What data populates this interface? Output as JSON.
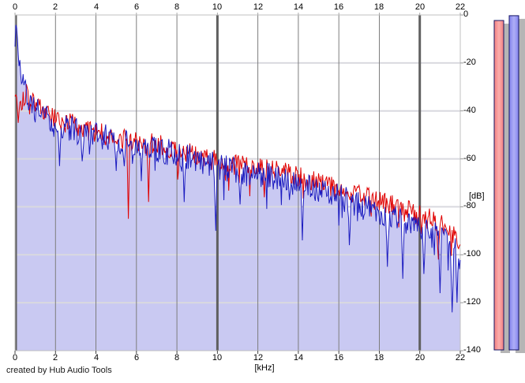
{
  "app": {
    "credit": "created by Hub Audio Tools"
  },
  "colors": {
    "background": "#ffffff",
    "plot_background": "#ffffff",
    "fill": "#c9c9f2",
    "trace_red": "#e00000",
    "trace_blue": "#1c1cc0",
    "grid_horizontal": "#d9d9df",
    "grid_vertical_minor": "#7d7d7d",
    "grid_vertical_major": "#606060",
    "plot_border": "#c0c0c0",
    "tick_bottom": "#444444",
    "tick_right": "#999999",
    "tick_top": "#aaaaaa",
    "meter_shadow": "#b5b5b5",
    "meter_border": "#141464"
  },
  "chart_data": {
    "type": "line",
    "title": "",
    "xlabel": "[kHz]",
    "ylabel": "[dB]",
    "xlim": [
      0,
      22
    ],
    "ylim": [
      -140,
      0
    ],
    "grid": true,
    "x_tick_labels": [
      "0",
      "2",
      "4",
      "6",
      "8",
      "10",
      "12",
      "14",
      "16",
      "18",
      "20",
      "22"
    ],
    "y_tick_labels": [
      "0",
      "-20",
      "-40",
      "-60",
      "-80",
      "-100",
      "-120",
      "-140"
    ],
    "major_vertical_gridlines_khz": [
      0,
      10,
      20
    ],
    "series": [
      {
        "name": "spectrum-red",
        "color": "#e00000",
        "noise_db": 4.5,
        "seed": 101,
        "anchors": [
          [
            0,
            -33
          ],
          [
            0.3,
            -36
          ],
          [
            0.55,
            -32
          ],
          [
            0.8,
            -34
          ],
          [
            1,
            -37
          ],
          [
            1.3,
            -39
          ],
          [
            1.7,
            -42
          ],
          [
            2,
            -44
          ],
          [
            2.5,
            -45
          ],
          [
            3,
            -46
          ],
          [
            3.5,
            -47.5
          ],
          [
            4,
            -49
          ],
          [
            5,
            -51
          ],
          [
            6,
            -53
          ],
          [
            7,
            -54
          ],
          [
            8,
            -56
          ],
          [
            9,
            -58
          ],
          [
            10,
            -61
          ],
          [
            11,
            -62.5
          ],
          [
            12,
            -64
          ],
          [
            13,
            -65
          ],
          [
            14,
            -67.5
          ],
          [
            15,
            -70
          ],
          [
            16,
            -72.5
          ],
          [
            17,
            -75
          ],
          [
            18,
            -77.5
          ],
          [
            19,
            -80.5
          ],
          [
            20,
            -83.5
          ],
          [
            21,
            -87
          ],
          [
            21.5,
            -90
          ],
          [
            22,
            -94
          ]
        ],
        "spikes": [
          [
            0.15,
            -45
          ],
          [
            5.58,
            -85
          ],
          [
            6.6,
            -78
          ],
          [
            12.3,
            -76
          ],
          [
            20.9,
            -102
          ]
        ]
      },
      {
        "name": "spectrum-blue",
        "color": "#1c1cc0",
        "fill": "#c9c9f2",
        "noise_db": 5.5,
        "seed": 202,
        "anchors": [
          [
            0,
            -12
          ],
          [
            0.05,
            -1
          ],
          [
            0.12,
            -10
          ],
          [
            0.2,
            -18
          ],
          [
            0.35,
            -26
          ],
          [
            0.5,
            -31
          ],
          [
            0.7,
            -36
          ],
          [
            0.9,
            -39
          ],
          [
            1.2,
            -41
          ],
          [
            1.6,
            -44
          ],
          [
            2,
            -46
          ],
          [
            2.5,
            -47
          ],
          [
            3,
            -48
          ],
          [
            3.5,
            -49
          ],
          [
            4,
            -50
          ],
          [
            5,
            -52
          ],
          [
            6,
            -55
          ],
          [
            7,
            -56
          ],
          [
            8,
            -58
          ],
          [
            9,
            -60
          ],
          [
            10,
            -63
          ],
          [
            11,
            -65
          ],
          [
            12,
            -66
          ],
          [
            13,
            -68
          ],
          [
            14,
            -71
          ],
          [
            15,
            -73
          ],
          [
            16,
            -76
          ],
          [
            17,
            -79
          ],
          [
            18,
            -82
          ],
          [
            19,
            -85
          ],
          [
            20,
            -88
          ],
          [
            20.8,
            -91
          ],
          [
            21.3,
            -95
          ],
          [
            21.7,
            -98
          ],
          [
            22,
            -101
          ]
        ],
        "spikes": [
          [
            2.2,
            -63
          ],
          [
            3.3,
            -61
          ],
          [
            5.0,
            -65
          ],
          [
            8.35,
            -78
          ],
          [
            9.9,
            -90
          ],
          [
            11.1,
            -79
          ],
          [
            14.2,
            -94
          ],
          [
            16.5,
            -96
          ],
          [
            18.4,
            -105
          ],
          [
            19.15,
            -110
          ],
          [
            20.2,
            -108
          ],
          [
            21.0,
            -116
          ],
          [
            21.6,
            -124
          ],
          [
            21.85,
            -120
          ]
        ]
      }
    ]
  },
  "meters": {
    "bars": [
      {
        "name": "meter-bar-red",
        "color": "#f28080",
        "highlight": "#fbadad",
        "level_db": -2.3
      },
      {
        "name": "meter-bar-blue",
        "color": "#8484ee",
        "highlight": "#adadf6",
        "level_db": -0.3
      }
    ]
  }
}
